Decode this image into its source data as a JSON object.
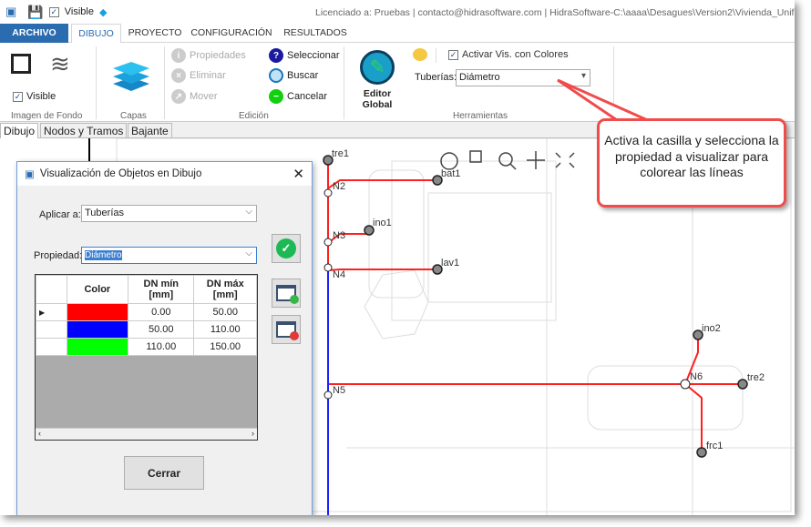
{
  "titlebar": {
    "visible_label": "Visible",
    "license_text": "Licenciado a: Pruebas | contacto@hidrasoftware.com | HidraSoftware-C:\\aaaa\\Desagues\\Version2\\Vivienda_Unifamiliar.d"
  },
  "tabs": [
    "ARCHIVO",
    "DIBUJO",
    "PROYECTO",
    "CONFIGURACIÓN",
    "RESULTADOS"
  ],
  "ribbon": {
    "imagen_fondo": {
      "visible_label": "Visible",
      "group_label": "Imagen de Fondo"
    },
    "capas": {
      "group_label": "Capas"
    },
    "edicion": {
      "propiedades": "Propiedades",
      "eliminar": "Eliminar",
      "mover": "Mover",
      "seleccionar": "Seleccionar",
      "buscar": "Buscar",
      "cancelar": "Cancelar",
      "group_label": "Edición"
    },
    "herramientas": {
      "editor_global": "Editor Global",
      "activar_label": "Activar Vis. con Colores",
      "activar_checked": true,
      "tuberias_label": "Tuberías:",
      "tuberias_value": "Diámetro",
      "group_label": "Herramientas"
    }
  },
  "doc_tabs": [
    "Dibujo",
    "Nodos y Tramos",
    "Bajante"
  ],
  "drawing": {
    "nodes": [
      "tre1",
      "bat1",
      "N2",
      "ino1",
      "N3",
      "lav1",
      "N4",
      "N5",
      "ino2",
      "N6",
      "tre2",
      "frc1"
    ]
  },
  "dialog": {
    "title": "Visualización de Objetos en Dibujo",
    "aplicar_label": "Aplicar a:",
    "aplicar_value": "Tuberías",
    "propiedad_label": "Propiedad:",
    "propiedad_value": "Diámetro",
    "columns": [
      "Color",
      "DN mín\n[mm]",
      "DN máx\n[mm]"
    ],
    "rows": [
      {
        "color": "#ff0000",
        "min": "0.00",
        "max": "50.00"
      },
      {
        "color": "#0000ff",
        "min": "50.00",
        "max": "110.00"
      },
      {
        "color": "#00ff00",
        "min": "110.00",
        "max": "150.00"
      }
    ],
    "close_label": "Cerrar"
  },
  "callout": {
    "text": "Activa la casilla y selecciona la propiedad a visualizar para colorear las líneas"
  },
  "colors": {
    "accent": "#2b6cb0",
    "callout_border": "#f24b4b",
    "pipe": "#ff2020"
  }
}
